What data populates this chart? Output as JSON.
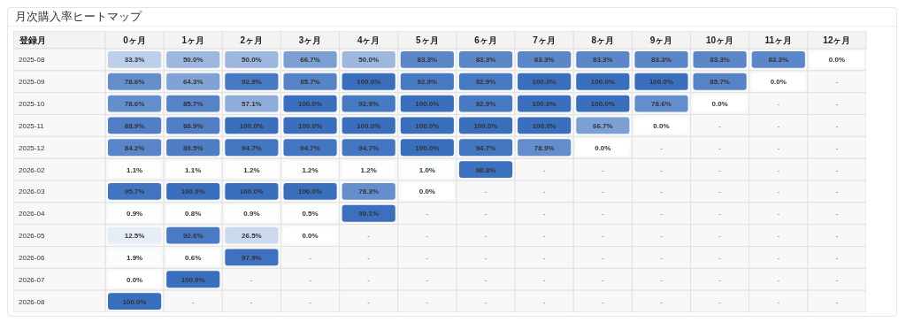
{
  "chart_data": {
    "type": "heatmap",
    "title": "月次購入率ヒートマップ",
    "ylabel": "登録月",
    "color": "#3a6fbe",
    "categories": [
      "0ヶ月",
      "1ヶ月",
      "2ヶ月",
      "3ヶ月",
      "4ヶ月",
      "5ヶ月",
      "6ヶ月",
      "7ヶ月",
      "8ヶ月",
      "9ヶ月",
      "10ヶ月",
      "11ヶ月",
      "12ヶ月"
    ],
    "y_categories": [
      "2025-08",
      "2025-09",
      "2025-10",
      "2025-11",
      "2025-12",
      "2026-02",
      "2026-03",
      "2026-04",
      "2026-05",
      "2026-06",
      "2026-07",
      "2026-08"
    ],
    "cells": [
      [
        33.3,
        50.0,
        50.0,
        66.7,
        50.0,
        83.3,
        83.3,
        83.3,
        83.3,
        83.3,
        83.3,
        83.3,
        0.0
      ],
      [
        78.6,
        64.3,
        92.9,
        85.7,
        100.0,
        92.9,
        92.9,
        100.0,
        100.0,
        100.0,
        85.7,
        0.0,
        null
      ],
      [
        78.6,
        85.7,
        57.1,
        100.0,
        92.9,
        100.0,
        92.9,
        100.0,
        100.0,
        78.6,
        0.0,
        null,
        null
      ],
      [
        88.9,
        88.9,
        100.0,
        100.0,
        100.0,
        100.0,
        100.0,
        100.0,
        66.7,
        0.0,
        null,
        null,
        null
      ],
      [
        84.2,
        89.5,
        94.7,
        94.7,
        94.7,
        100.0,
        94.7,
        78.9,
        0.0,
        null,
        null,
        null,
        null
      ],
      [
        1.1,
        1.1,
        1.2,
        1.2,
        1.2,
        1.0,
        98.8,
        null,
        null,
        null,
        null,
        null,
        null
      ],
      [
        95.7,
        100.0,
        100.0,
        100.0,
        78.3,
        0.0,
        null,
        null,
        null,
        null,
        null,
        null,
        null
      ],
      [
        0.9,
        0.8,
        0.9,
        0.5,
        99.1,
        null,
        null,
        null,
        null,
        null,
        null,
        null,
        null
      ],
      [
        12.5,
        92.6,
        26.5,
        0.0,
        null,
        null,
        null,
        null,
        null,
        null,
        null,
        null,
        null
      ],
      [
        1.9,
        0.6,
        97.9,
        null,
        null,
        null,
        null,
        null,
        null,
        null,
        null,
        null,
        null
      ],
      [
        0.0,
        100.0,
        null,
        null,
        null,
        null,
        null,
        null,
        null,
        null,
        null,
        null,
        null
      ],
      [
        100.0,
        null,
        null,
        null,
        null,
        null,
        null,
        null,
        null,
        null,
        null,
        null,
        null
      ]
    ],
    "cell_labels": [
      [
        "33.3%",
        "50.0%",
        "50.0%",
        "66.7%",
        "50.0%",
        "83.3%",
        "83.3%",
        "83.3%",
        "83.3%",
        "83.3%",
        "83.3%",
        "83.3%",
        "0.0%"
      ],
      [
        "78.6%",
        "64.3%",
        "92.9%",
        "85.7%",
        "100.0%",
        "92.9%",
        "92.9%",
        "100.0%",
        "100.0%",
        "100.0%",
        "85.7%",
        "0.0%",
        "-"
      ],
      [
        "78.6%",
        "85.7%",
        "57.1%",
        "100.0%",
        "92.9%",
        "100.0%",
        "92.9%",
        "100.0%",
        "100.0%",
        "78.6%",
        "0.0%",
        "-",
        "-"
      ],
      [
        "88.9%",
        "88.9%",
        "100.0%",
        "100.0%",
        "100.0%",
        "100.0%",
        "100.0%",
        "100.0%",
        "66.7%",
        "0.0%",
        "-",
        "-",
        "-"
      ],
      [
        "84.2%",
        "89.5%",
        "94.7%",
        "94.7%",
        "94.7%",
        "100.0%",
        "94.7%",
        "78.9%",
        "0.0%",
        "-",
        "-",
        "-",
        "-"
      ],
      [
        "1.1%",
        "1.1%",
        "1.2%",
        "1.2%",
        "1.2%",
        "1.0%",
        "98.8%",
        "-",
        "-",
        "-",
        "-",
        "-",
        "-"
      ],
      [
        "95.7%",
        "100.0%",
        "100.0%",
        "100.0%",
        "78.3%",
        "0.0%",
        "-",
        "-",
        "-",
        "-",
        "-",
        "-",
        "-"
      ],
      [
        "0.9%",
        "0.8%",
        "0.9%",
        "0.5%",
        "99.1%",
        "-",
        "-",
        "-",
        "-",
        "-",
        "-",
        "-",
        "-"
      ],
      [
        "12.5%",
        "92.6%",
        "26.5%",
        "0.0%",
        "-",
        "-",
        "-",
        "-",
        "-",
        "-",
        "-",
        "-",
        "-"
      ],
      [
        "1.9%",
        "0.6%",
        "97.9%",
        "-",
        "-",
        "-",
        "-",
        "-",
        "-",
        "-",
        "-",
        "-",
        "-"
      ],
      [
        "0.0%",
        "100.0%",
        "-",
        "-",
        "-",
        "-",
        "-",
        "-",
        "-",
        "-",
        "-",
        "-",
        "-"
      ],
      [
        "100.0%",
        "-",
        "-",
        "-",
        "-",
        "-",
        "-",
        "-",
        "-",
        "-",
        "-",
        "-",
        "-"
      ]
    ]
  }
}
